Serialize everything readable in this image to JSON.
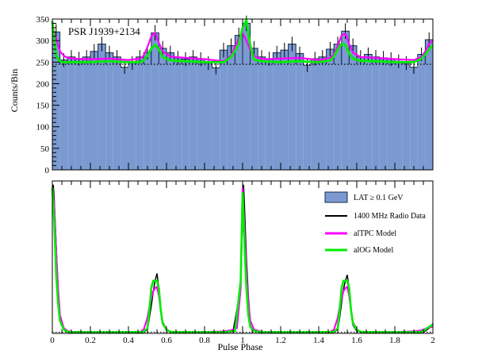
{
  "chart_data": [
    {
      "type": "bar",
      "ylabel": "Counts/Bin",
      "xlim": [
        0,
        2
      ],
      "ylim": [
        0,
        350
      ],
      "yticks": [
        0,
        50,
        100,
        150,
        200,
        250,
        300,
        350
      ],
      "xticks": [
        0,
        0.2,
        0.4,
        0.6,
        0.8,
        1,
        1.2,
        1.4,
        1.6,
        1.8,
        2
      ],
      "annotation": "PSR J1939+2134",
      "background_level": 245,
      "bin_width": 0.04,
      "colors": {
        "hist_fill": "#7b9ad1",
        "hist_edge": "#1a2a4a",
        "altpc": "#ff00ff",
        "aog": "#00ee00"
      },
      "series": [
        {
          "name": "LAT ≥ 0.1 GeV",
          "x": [
            0.02,
            0.06,
            0.1,
            0.14,
            0.18,
            0.22,
            0.26,
            0.3,
            0.34,
            0.38,
            0.42,
            0.46,
            0.5,
            0.54,
            0.58,
            0.62,
            0.66,
            0.7,
            0.74,
            0.78,
            0.82,
            0.86,
            0.9,
            0.94,
            0.98,
            1.02,
            1.06,
            1.1,
            1.14,
            1.18,
            1.22,
            1.26,
            1.3,
            1.34,
            1.38,
            1.42,
            1.46,
            1.5,
            1.54,
            1.58,
            1.62,
            1.66,
            1.7,
            1.74,
            1.78,
            1.82,
            1.86,
            1.9,
            1.94,
            1.98
          ],
          "values": [
            320,
            255,
            262,
            258,
            262,
            275,
            292,
            272,
            262,
            238,
            248,
            262,
            272,
            318,
            282,
            272,
            260,
            257,
            262,
            257,
            248,
            237,
            278,
            288,
            312,
            340,
            282,
            262,
            258,
            272,
            278,
            292,
            270,
            243,
            258,
            262,
            280,
            292,
            322,
            288,
            262,
            268,
            262,
            260,
            257,
            252,
            248,
            238,
            268,
            302
          ],
          "errors": [
            18,
            16,
            16,
            16,
            16,
            17,
            17,
            16,
            16,
            15,
            16,
            16,
            16,
            18,
            17,
            16,
            16,
            16,
            16,
            16,
            16,
            15,
            17,
            17,
            18,
            18,
            17,
            16,
            16,
            16,
            17,
            17,
            16,
            16,
            16,
            16,
            17,
            17,
            18,
            17,
            16,
            16,
            16,
            16,
            16,
            16,
            16,
            15,
            16,
            17
          ]
        },
        {
          "name": "alTPC Model",
          "x": [
            0,
            0.02,
            0.04,
            0.06,
            0.08,
            0.12,
            0.2,
            0.3,
            0.4,
            0.46,
            0.48,
            0.5,
            0.52,
            0.54,
            0.56,
            0.58,
            0.62,
            0.7,
            0.8,
            0.9,
            0.94,
            0.96,
            0.98,
            1.0,
            1.02,
            1.04,
            1.06,
            1.08,
            1.12,
            1.2,
            1.3,
            1.4,
            1.46,
            1.48,
            1.5,
            1.52,
            1.54,
            1.56,
            1.58,
            1.62,
            1.7,
            1.8,
            1.9,
            1.94,
            1.96,
            1.98,
            2.0
          ],
          "values": [
            330,
            305,
            275,
            265,
            260,
            258,
            257,
            258,
            255,
            258,
            265,
            285,
            310,
            318,
            295,
            275,
            263,
            260,
            257,
            252,
            265,
            285,
            305,
            318,
            300,
            278,
            265,
            260,
            257,
            258,
            260,
            255,
            260,
            268,
            288,
            312,
            316,
            292,
            272,
            262,
            260,
            257,
            255,
            262,
            275,
            292,
            300
          ]
        },
        {
          "name": "alOG Model",
          "x": [
            0,
            0.02,
            0.04,
            0.06,
            0.1,
            0.2,
            0.3,
            0.4,
            0.46,
            0.48,
            0.5,
            0.52,
            0.54,
            0.56,
            0.58,
            0.62,
            0.7,
            0.8,
            0.9,
            0.94,
            0.96,
            0.98,
            1.0,
            1.02,
            1.04,
            1.06,
            1.1,
            1.2,
            1.3,
            1.4,
            1.46,
            1.48,
            1.5,
            1.52,
            1.54,
            1.56,
            1.58,
            1.62,
            1.7,
            1.8,
            1.9,
            1.94,
            1.96,
            1.98,
            2.0
          ],
          "values": [
            345,
            265,
            252,
            250,
            250,
            250,
            252,
            250,
            250,
            254,
            265,
            282,
            290,
            280,
            262,
            254,
            252,
            250,
            250,
            262,
            276,
            292,
            330,
            348,
            290,
            256,
            252,
            250,
            252,
            250,
            254,
            263,
            280,
            292,
            290,
            270,
            258,
            253,
            252,
            250,
            250,
            258,
            268,
            280,
            290
          ]
        }
      ]
    },
    {
      "type": "line",
      "xlabel": "Pulse Phase",
      "xlim": [
        0,
        2
      ],
      "ylim": [
        0,
        1
      ],
      "xticks": [
        0,
        0.2,
        0.4,
        0.6,
        0.8,
        1,
        1.2,
        1.4,
        1.6,
        1.8,
        2
      ],
      "xtick_labels": [
        "0",
        "0.2",
        "0.4",
        "0.6",
        "0.8",
        "1",
        "1.2",
        "1.4",
        "1.6",
        "1.8",
        "2"
      ],
      "legend_position": "top-right",
      "legend": [
        {
          "label": "LAT ≥ 0.1 GeV",
          "kind": "box"
        },
        {
          "label": "1400 MHz Radio Data",
          "kind": "line",
          "color": "#000000"
        },
        {
          "label": "alTPC Model",
          "kind": "line",
          "color": "#ff00ff"
        },
        {
          "label": "alOG Model",
          "kind": "line",
          "color": "#00ee00"
        }
      ],
      "series": [
        {
          "name": "1400 MHz Radio Data",
          "x": [
            0,
            0.005,
            0.01,
            0.02,
            0.03,
            0.04,
            0.06,
            0.08,
            0.1,
            0.2,
            0.3,
            0.4,
            0.48,
            0.5,
            0.51,
            0.52,
            0.53,
            0.54,
            0.55,
            0.56,
            0.57,
            0.58,
            0.6,
            0.62,
            0.7,
            0.8,
            0.9,
            0.95,
            0.99,
            1.0,
            1.005,
            1.01,
            1.02,
            1.03,
            1.04,
            1.06,
            1.1,
            1.2,
            1.3,
            1.4,
            1.48,
            1.5,
            1.51,
            1.52,
            1.53,
            1.54,
            1.55,
            1.56,
            1.57,
            1.58,
            1.6,
            1.62,
            1.7,
            1.8,
            1.9,
            1.96,
            1.98,
            2.0
          ],
          "values": [
            0.98,
            1.0,
            0.9,
            0.6,
            0.3,
            0.1,
            0.02,
            0.005,
            0.003,
            0.003,
            0.003,
            0.003,
            0.005,
            0.02,
            0.1,
            0.18,
            0.27,
            0.35,
            0.4,
            0.3,
            0.15,
            0.06,
            0.02,
            0.005,
            0.003,
            0.003,
            0.005,
            0.01,
            0.3,
            0.8,
            1.0,
            0.85,
            0.5,
            0.25,
            0.08,
            0.02,
            0.005,
            0.003,
            0.003,
            0.003,
            0.005,
            0.02,
            0.1,
            0.2,
            0.29,
            0.35,
            0.39,
            0.3,
            0.15,
            0.05,
            0.01,
            0.005,
            0.003,
            0.003,
            0.005,
            0.01,
            0.03,
            0.06
          ]
        },
        {
          "name": "alTPC Model",
          "x": [
            0,
            0.01,
            0.02,
            0.03,
            0.04,
            0.06,
            0.08,
            0.1,
            0.2,
            0.3,
            0.4,
            0.46,
            0.48,
            0.5,
            0.51,
            0.52,
            0.53,
            0.54,
            0.55,
            0.56,
            0.57,
            0.58,
            0.6,
            0.62,
            0.7,
            0.8,
            0.9,
            0.94,
            0.97,
            0.99,
            1.0,
            1.01,
            1.02,
            1.03,
            1.04,
            1.06,
            1.1,
            1.2,
            1.3,
            1.4,
            1.46,
            1.48,
            1.5,
            1.51,
            1.52,
            1.53,
            1.54,
            1.55,
            1.56,
            1.57,
            1.58,
            1.6,
            1.62,
            1.7,
            1.8,
            1.9,
            1.94,
            1.97,
            2.0
          ],
          "values": [
            0.98,
            0.85,
            0.55,
            0.3,
            0.12,
            0.03,
            0.01,
            0.005,
            0.003,
            0.003,
            0.003,
            0.005,
            0.02,
            0.1,
            0.17,
            0.23,
            0.28,
            0.3,
            0.31,
            0.25,
            0.15,
            0.07,
            0.02,
            0.005,
            0.003,
            0.003,
            0.008,
            0.015,
            0.03,
            0.3,
            0.98,
            0.7,
            0.4,
            0.2,
            0.08,
            0.02,
            0.005,
            0.003,
            0.003,
            0.003,
            0.005,
            0.02,
            0.1,
            0.17,
            0.23,
            0.28,
            0.3,
            0.31,
            0.25,
            0.15,
            0.07,
            0.02,
            0.005,
            0.003,
            0.003,
            0.008,
            0.015,
            0.03,
            0.04
          ]
        },
        {
          "name": "alOG Model",
          "x": [
            0,
            0.01,
            0.02,
            0.03,
            0.04,
            0.06,
            0.08,
            0.1,
            0.2,
            0.3,
            0.4,
            0.48,
            0.5,
            0.51,
            0.52,
            0.53,
            0.54,
            0.55,
            0.56,
            0.57,
            0.58,
            0.6,
            0.62,
            0.7,
            0.8,
            0.9,
            0.96,
            0.99,
            1.0,
            1.01,
            1.02,
            1.03,
            1.04,
            1.06,
            1.1,
            1.2,
            1.3,
            1.4,
            1.48,
            1.5,
            1.51,
            1.52,
            1.53,
            1.54,
            1.55,
            1.56,
            1.57,
            1.58,
            1.6,
            1.62,
            1.7,
            1.8,
            1.9,
            1.94,
            1.96,
            1.98,
            2.0
          ],
          "values": [
            0.98,
            0.75,
            0.4,
            0.2,
            0.08,
            0.02,
            0.005,
            0.003,
            0.003,
            0.003,
            0.003,
            0.005,
            0.03,
            0.15,
            0.3,
            0.35,
            0.35,
            0.35,
            0.3,
            0.15,
            0.06,
            0.02,
            0.005,
            0.003,
            0.003,
            0.003,
            0.01,
            0.35,
            0.95,
            0.6,
            0.3,
            0.12,
            0.04,
            0.01,
            0.003,
            0.003,
            0.003,
            0.003,
            0.005,
            0.03,
            0.15,
            0.3,
            0.35,
            0.35,
            0.35,
            0.3,
            0.15,
            0.06,
            0.02,
            0.005,
            0.003,
            0.003,
            0.003,
            0.005,
            0.02,
            0.04,
            0.05
          ]
        }
      ]
    }
  ]
}
